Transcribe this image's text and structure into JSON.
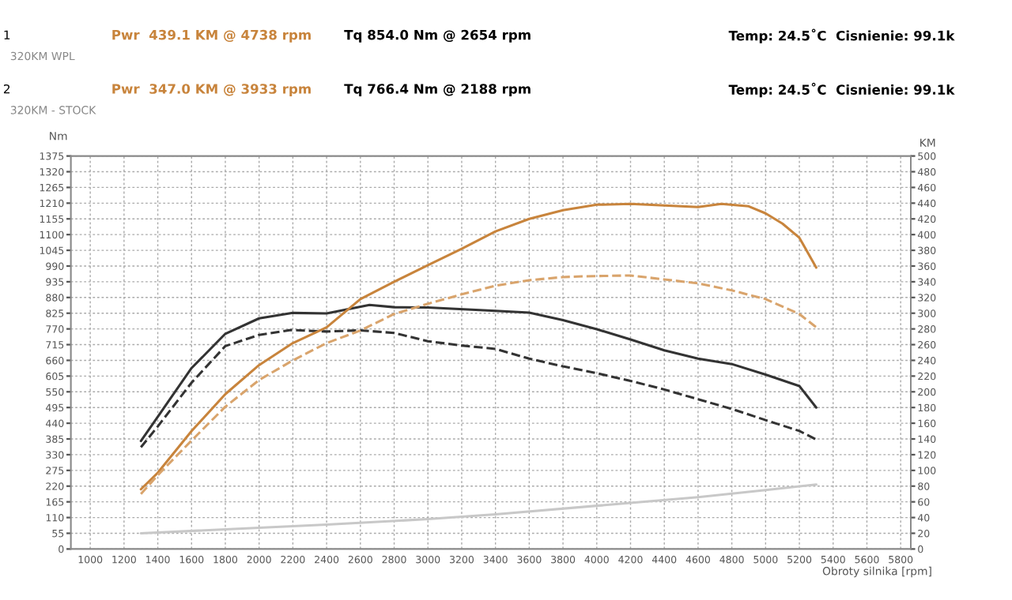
{
  "chart_data": {
    "type": "line",
    "xlabel": "Obroty silnika [rpm]",
    "ylabel": "Nm",
    "y2label": "KM",
    "xlim": [
      885,
      5860
    ],
    "xticks": [
      1000,
      1200,
      1400,
      1600,
      1800,
      2000,
      2200,
      2400,
      2600,
      2800,
      3000,
      3200,
      3400,
      3600,
      3800,
      4000,
      4200,
      4400,
      4600,
      4800,
      5000,
      5200,
      5400,
      5600,
      5800
    ],
    "ylim": [
      0,
      1375
    ],
    "yticks": [
      0,
      55,
      110,
      165,
      220,
      275,
      330,
      385,
      440,
      495,
      550,
      605,
      660,
      715,
      770,
      825,
      880,
      935,
      990,
      1045,
      1100,
      1155,
      1210,
      1265,
      1320,
      1375
    ],
    "y2lim": [
      0,
      500
    ],
    "y2ticks": [
      0,
      20,
      40,
      60,
      80,
      100,
      120,
      140,
      160,
      180,
      200,
      220,
      240,
      260,
      280,
      300,
      320,
      340,
      360,
      380,
      400,
      420,
      440,
      460,
      480,
      500
    ],
    "grid": true,
    "legend": false,
    "marker": "none",
    "annotations": [
      "1",
      "Pwr  439.1 KM @ 4738 rpm",
      "Tq 854.0 Nm @ 2654 rpm",
      "Temp: 24.5˚C  Cisnienie: 99.1k",
      "320KM WPL",
      "2",
      "Pwr  347.0 KM @ 3933 rpm",
      "Tq 766.4 Nm @ 2188 rpm",
      "Temp: 24.5˚C  Cisnienie: 99.1k",
      "320KM - STOCK"
    ],
    "series": [
      {
        "axis": "y",
        "line_style": "solid",
        "color": "#333333",
        "x": [
          1300,
          1400,
          1600,
          1800,
          2000,
          2200,
          2400,
          2654,
          2800,
          3000,
          3400,
          3600,
          3800,
          4000,
          4200,
          4400,
          4600,
          4800,
          5000,
          5200,
          5300
        ],
        "values": [
          378,
          463,
          633,
          753,
          807,
          826,
          824,
          854,
          846,
          845,
          833,
          827,
          801,
          769,
          733,
          695,
          666,
          647,
          610,
          570,
          495
        ]
      },
      {
        "axis": "y",
        "line_style": "dashed",
        "color": "#333333",
        "x": [
          1300,
          1400,
          1600,
          1800,
          2000,
          2188,
          2400,
          2600,
          2800,
          3000,
          3200,
          3400,
          3600,
          3800,
          4000,
          4200,
          4400,
          4600,
          4800,
          5000,
          5200,
          5300
        ],
        "values": [
          356,
          429,
          582,
          710,
          749,
          766,
          761,
          765,
          756,
          727,
          712,
          700,
          666,
          639,
          615,
          588,
          558,
          524,
          490,
          451,
          413,
          383
        ]
      },
      {
        "axis": "y2",
        "line_style": "solid",
        "color": "#c8843c",
        "x": [
          1300,
          1400,
          1600,
          1800,
          2000,
          2200,
          2400,
          2600,
          2800,
          3000,
          3200,
          3400,
          3600,
          3800,
          4000,
          4200,
          4400,
          4600,
          4738,
          4900,
          5000,
          5100,
          5200,
          5300
        ],
        "values": [
          76,
          97,
          150,
          197,
          234,
          262,
          282,
          318,
          340,
          361,
          382,
          404,
          420,
          431,
          438,
          439,
          437,
          435,
          439,
          436,
          427,
          414,
          396,
          358
        ]
      },
      {
        "axis": "y2",
        "line_style": "dashed",
        "color": "#d9a46c",
        "x": [
          1300,
          1400,
          1600,
          1800,
          2000,
          2200,
          2400,
          2600,
          2800,
          3000,
          3200,
          3400,
          3600,
          3800,
          3933,
          4200,
          4400,
          4600,
          4800,
          5000,
          5200,
          5300
        ],
        "values": [
          70,
          94,
          138,
          181,
          215,
          240,
          262,
          278,
          299,
          312,
          324,
          335,
          342,
          346,
          347,
          348,
          343,
          338,
          329,
          318,
          299,
          282
        ]
      },
      {
        "axis": "y2",
        "line_style": "solid",
        "color": "#c8c8c8",
        "x": [
          1300,
          2000,
          2400,
          3000,
          3400,
          4000,
          4600,
          5000,
          5300
        ],
        "values": [
          20,
          27,
          31,
          38,
          44,
          55,
          66,
          75,
          82
        ]
      }
    ]
  }
}
